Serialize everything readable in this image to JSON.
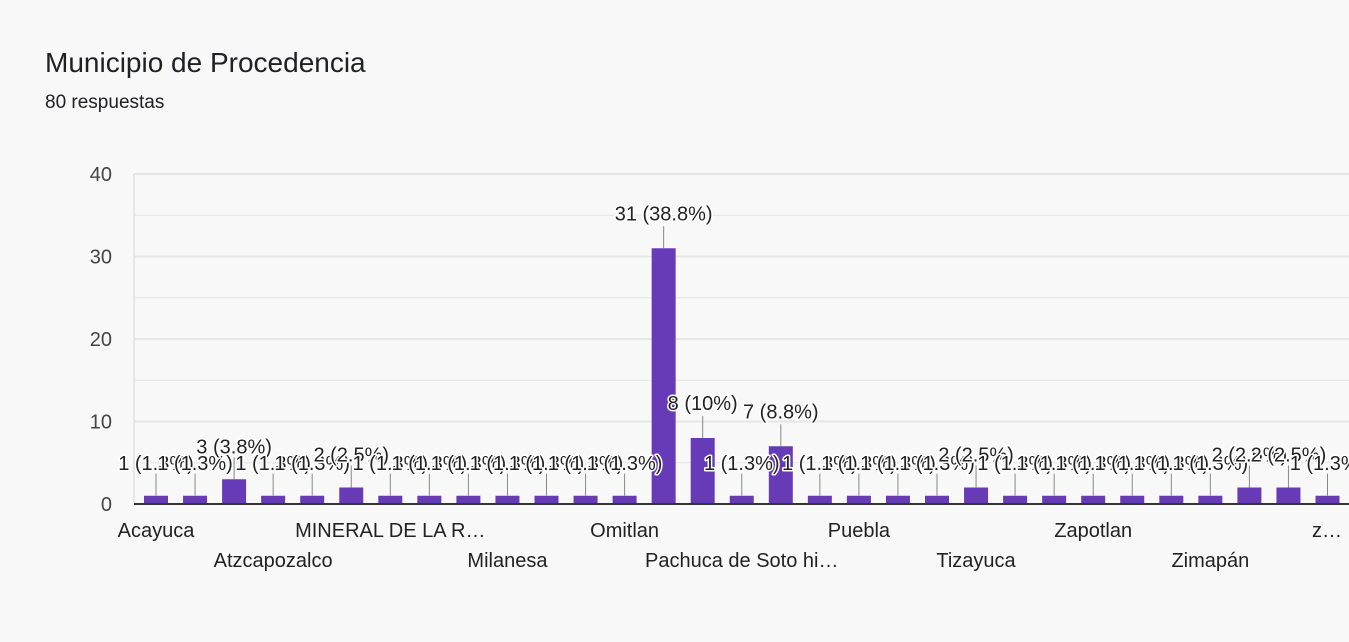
{
  "header": {
    "title": "Municipio de Procedencia",
    "responses": "80 respuestas"
  },
  "colors": {
    "bar": "#673ab7",
    "grid": "#e6e6e6",
    "axis": "#333333",
    "background": "#f8f8f8"
  },
  "chart_data": {
    "type": "bar",
    "title": "Municipio de Procedencia",
    "ylim": [
      0,
      40
    ],
    "yticks": [
      0,
      10,
      20,
      30,
      40
    ],
    "grid": true,
    "x_labels_shown": [
      "Acayuca",
      "Atzcapozalco",
      "MINERAL DE LA R…",
      "Milanesa",
      "Omitlan",
      "Pachuca de Soto hi…",
      "Puebla",
      "Tizayuca",
      "Zapotlan",
      "Zimapán",
      "z…"
    ],
    "values": [
      1,
      1,
      3,
      1,
      1,
      2,
      1,
      1,
      1,
      1,
      1,
      1,
      1,
      31,
      8,
      1,
      7,
      1,
      1,
      1,
      1,
      2,
      1,
      1,
      1,
      1,
      1,
      1,
      2,
      2,
      1
    ],
    "data_labels": [
      "1 (1.3%)",
      "1 (1.3%)",
      "3 (3.8%)",
      "1 (1.3%)",
      "1 (1.3%)",
      "2 (2.5%)",
      "1 (1.3%)",
      "1 (1.3%)",
      "1 (1.3%)",
      "1 (1.3%)",
      "1 (1.3%)",
      "1 (1.3%)",
      "1 (1.3%)",
      "31 (38.8%)",
      "8 (10%)",
      "1 (1.3%)",
      "7 (8.8%)",
      "1 (1.3%)",
      "1 (1.3%)",
      "1 (1.3%)",
      "1 (1.3%)",
      "2 (2.5%)",
      "1 (1.3%)",
      "1 (1.3%)",
      "1 (1.3%)",
      "1 (1.3%)",
      "1 (1.3%)",
      "1 (1.3%)",
      "2 (2.5%)",
      "2 (2.5%)",
      "1 (1.3%)"
    ]
  }
}
